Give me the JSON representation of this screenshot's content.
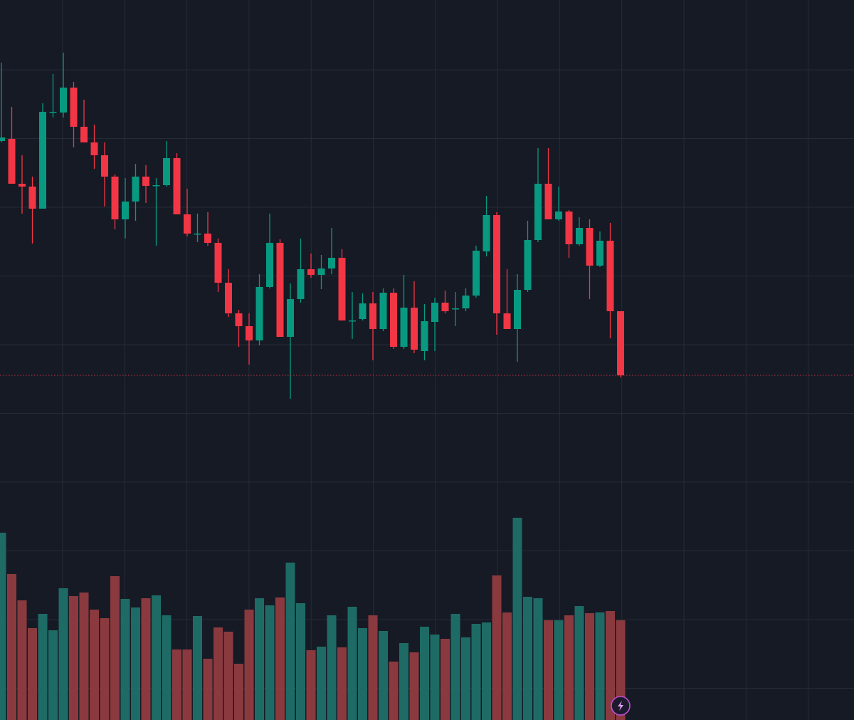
{
  "chart_data": {
    "type": "candlestick",
    "open": [
      402,
      405,
      342,
      338,
      307,
      443,
      442,
      477,
      422,
      400,
      382,
      352,
      292,
      317,
      352,
      340,
      340,
      378,
      299,
      272,
      272,
      259,
      203,
      160,
      142,
      122,
      197,
      259,
      127,
      180,
      222,
      214,
      223,
      238,
      150,
      152,
      174,
      138,
      189,
      113,
      168,
      107,
      148,
      175,
      167,
      167,
      185,
      247,
      298,
      160,
      138,
      193,
      263,
      342,
      292,
      303,
      257,
      280,
      227,
      262,
      163
    ],
    "high": [
      512,
      450,
      382,
      352,
      455,
      496,
      526,
      485,
      460,
      425,
      400,
      355,
      350,
      370,
      368,
      350,
      402,
      385,
      335,
      300,
      302,
      265,
      222,
      165,
      160,
      215,
      300,
      264,
      202,
      265,
      244,
      242,
      280,
      250,
      190,
      188,
      190,
      195,
      195,
      214,
      205,
      173,
      182,
      192,
      190,
      195,
      255,
      325,
      302,
      222,
      215,
      290,
      392,
      392,
      338,
      305,
      295,
      292,
      275,
      287,
      163
    ],
    "low": [
      400,
      342,
      300,
      258,
      307,
      435,
      435,
      393,
      400,
      363,
      310,
      278,
      265,
      290,
      315,
      255,
      338,
      299,
      268,
      260,
      255,
      190,
      155,
      113,
      88,
      115,
      195,
      127,
      40,
      175,
      210,
      194,
      215,
      150,
      124,
      150,
      94,
      135,
      110,
      110,
      104,
      94,
      107,
      160,
      142,
      163,
      182,
      240,
      130,
      138,
      92,
      190,
      260,
      292,
      290,
      238,
      255,
      180,
      225,
      125,
      70
    ],
    "close": [
      407,
      342,
      338,
      307,
      443,
      443,
      477,
      422,
      400,
      382,
      352,
      292,
      317,
      352,
      339,
      340,
      378,
      299,
      272,
      272,
      259,
      203,
      160,
      142,
      122,
      197,
      259,
      127,
      180,
      222,
      214,
      223,
      238,
      150,
      150,
      174,
      138,
      189,
      113,
      168,
      109,
      149,
      175,
      163,
      167,
      185,
      248,
      298,
      160,
      138,
      193,
      263,
      342,
      292,
      303,
      257,
      280,
      227,
      262,
      163,
      73
    ],
    "volume": [
      263,
      205,
      168,
      129,
      149,
      126,
      185,
      174,
      179,
      155,
      143,
      202,
      170,
      158,
      171,
      175,
      147,
      99,
      99,
      146,
      86,
      130,
      124,
      79,
      155,
      171,
      161,
      172,
      221,
      164,
      98,
      103,
      147,
      102,
      159,
      129,
      147,
      125,
      82,
      108,
      95,
      131,
      120,
      114,
      149,
      116,
      135,
      137,
      203,
      151,
      284,
      173,
      171,
      140,
      140,
      147,
      160,
      150,
      151,
      153,
      140
    ],
    "ylim": [
      0,
      600
    ],
    "volume_ylim": [
      0,
      1011
    ],
    "up_color": "#089981",
    "down_color": "#f23645",
    "volume_up_color": "#1e6b66",
    "volume_down_color": "#8a3a3e",
    "last_price_color": "#f23645",
    "grid": true
  }
}
